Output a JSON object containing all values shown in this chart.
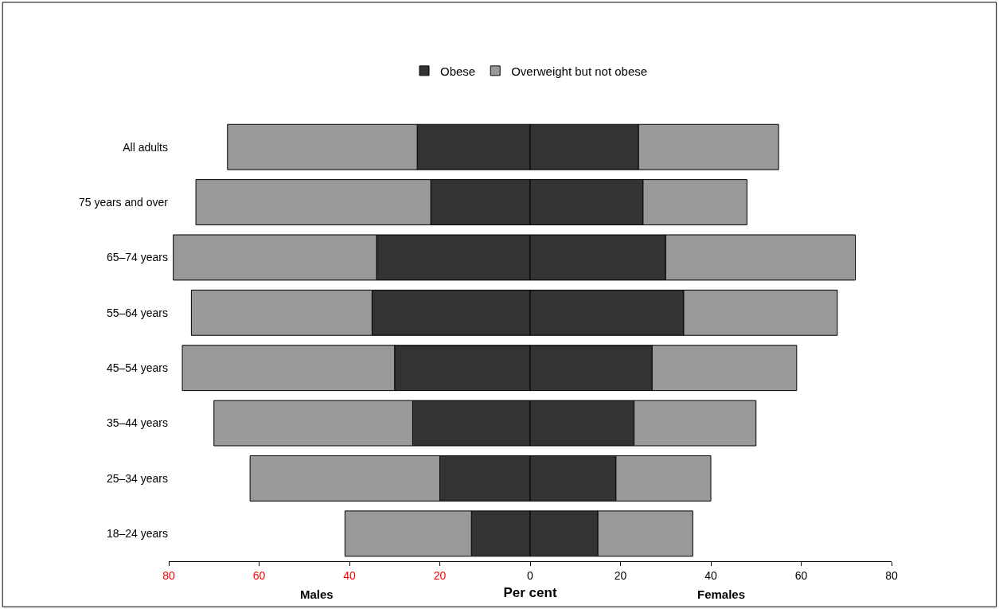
{
  "chart_data": {
    "type": "bar",
    "orientation": "horizontal",
    "stacked": true,
    "xlabel": "Per cent",
    "annotations": [
      "Males",
      "Females"
    ],
    "categories": [
      "All adults",
      "75 years and over",
      "65–74 years",
      "55–64 years",
      "45–54 years",
      "35–44 years",
      "25–34 years",
      "18–24 years"
    ],
    "series": [
      {
        "name": "Obese",
        "color": "#333333",
        "values": [
          -25,
          -22,
          -34,
          -35,
          -30,
          -26,
          -20,
          -13
        ]
      },
      {
        "color": "#333333",
        "values": [
          24,
          25,
          30,
          34,
          27,
          23,
          19,
          15
        ]
      },
      {
        "name": "Overweight but not obese",
        "color": "#999999",
        "values": [
          -42,
          -52,
          -45,
          -40,
          -47,
          -44,
          -42,
          -28
        ]
      },
      {
        "color": "#999999",
        "values": [
          31,
          23,
          42,
          34,
          32,
          27,
          21,
          21
        ]
      }
    ],
    "xlim": [
      -80,
      80
    ],
    "xticks": [
      {
        "value": -80,
        "label": "80"
      },
      {
        "value": -60,
        "label": "60"
      },
      {
        "value": -40,
        "label": "40"
      },
      {
        "value": -20,
        "label": "20"
      },
      0,
      20,
      40,
      60,
      80
    ],
    "legend": "top"
  }
}
